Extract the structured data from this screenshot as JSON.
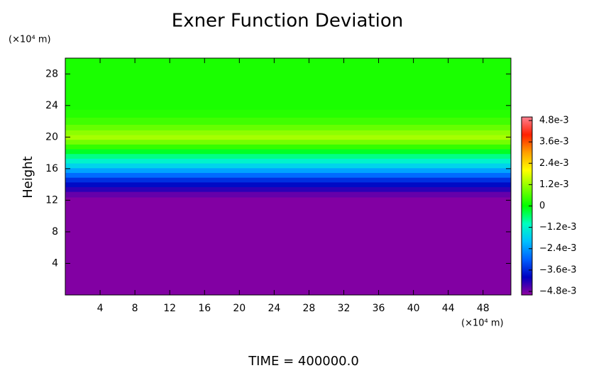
{
  "chart_data": {
    "type": "heatmap",
    "title": "Exner Function Deviation",
    "y_unit_label": "(×10⁴ m)",
    "x_unit_label": "(×10⁴ m)",
    "ylabel": "Height",
    "footer": "TIME = 400000.0",
    "xlim": [
      0,
      51.2
    ],
    "ylim": [
      0,
      30
    ],
    "xticks": [
      4,
      8,
      12,
      16,
      20,
      24,
      28,
      32,
      36,
      40,
      44,
      48
    ],
    "yticks": [
      4,
      8,
      12,
      16,
      20,
      24,
      28
    ],
    "y": [
      0,
      12,
      12.8,
      13.4,
      14,
      14.6,
      15.2,
      15.8,
      16.4,
      17,
      17.6,
      18.2,
      18.8,
      19.4,
      20,
      20.6,
      21.2,
      22,
      23,
      24,
      30
    ],
    "values": [
      -0.0049,
      -0.0049,
      -0.0047,
      -0.0043,
      -0.0039,
      -0.0035,
      -0.0029,
      -0.0023,
      -0.0017,
      -0.0012,
      -0.0007,
      -0.0002,
      0.0004,
      0.0009,
      0.0013,
      0.0011,
      0.0008,
      0.0005,
      0.0003,
      0.0002,
      0.0002
    ],
    "clim": [
      -0.005,
      0.005
    ],
    "colorscale": [
      "#9000a0",
      "#0000c0",
      "#0060ff",
      "#00c0ff",
      "#00ffc0",
      "#00ff00",
      "#80ff00",
      "#ffff00",
      "#ffa000",
      "#ff2000",
      "#ff8090"
    ],
    "cticks": [
      {
        "value": 0.0048,
        "label": "4.8e-3"
      },
      {
        "value": 0.0036,
        "label": "3.6e-3"
      },
      {
        "value": 0.0024,
        "label": "2.4e-3"
      },
      {
        "value": 0.0012,
        "label": "1.2e-3"
      },
      0,
      {
        "value": -0.0012,
        "label": "−1.2e-3"
      },
      {
        "value": -0.0024,
        "label": "−2.4e-3"
      },
      {
        "value": -0.0036,
        "label": "−3.6e-3"
      },
      {
        "value": -0.0048,
        "label": "−4.8e-3"
      }
    ]
  }
}
